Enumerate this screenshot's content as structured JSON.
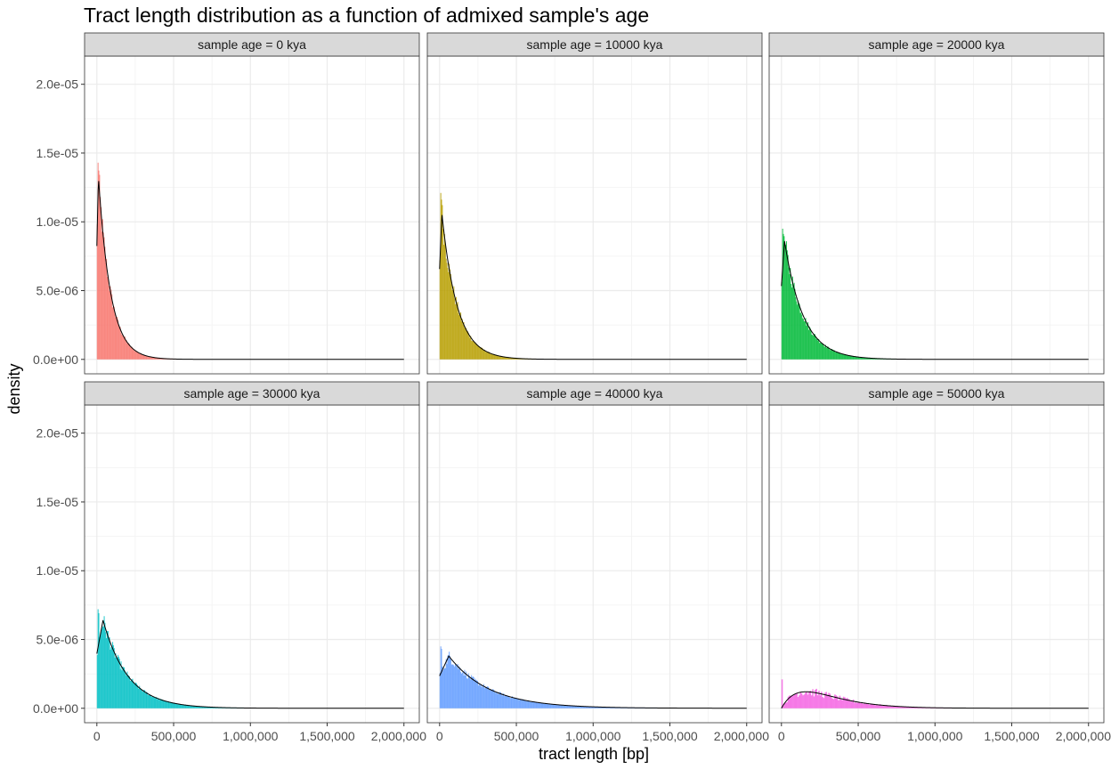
{
  "chart_data": {
    "type": "histogram",
    "title": "Tract length distribution as a function of admixed sample's age",
    "xlabel": "tract length [bp]",
    "ylabel": "density",
    "xlim": [
      0,
      2000000
    ],
    "ylim": [
      0,
      2.1e-05
    ],
    "x_ticks": [
      0,
      500000,
      1000000,
      1500000,
      2000000
    ],
    "x_tick_labels": [
      "0",
      "500,000",
      "1,000,000",
      "1,500,000",
      "2,000,000"
    ],
    "y_ticks": [
      0,
      5e-06,
      1e-05,
      1.5e-05,
      2e-05
    ],
    "y_tick_labels": [
      "0.0e+00",
      "5.0e-06",
      "1.0e-05",
      "1.5e-05",
      "2.0e-05"
    ],
    "grid": true,
    "legend": "none",
    "facets": [
      {
        "label": "sample age = 0 kya",
        "color": "#F8766D",
        "peak_x": 10000,
        "peak_density": 1.33e-05,
        "rate_per_bp": 1.33e-05,
        "max_bar": 1.43e-05
      },
      {
        "label": "sample age = 10000 kya",
        "color": "#B79F00",
        "peak_x": 15000,
        "peak_density": 1.06e-05,
        "rate_per_bp": 1.06e-05,
        "max_bar": 1.21e-05
      },
      {
        "label": "sample age = 20000 kya",
        "color": "#00BA38",
        "peak_x": 20000,
        "peak_density": 8.6e-06,
        "rate_per_bp": 8.6e-06,
        "max_bar": 9.5e-06
      },
      {
        "label": "sample age = 30000 kya",
        "color": "#00BFC4",
        "peak_x": 40000,
        "peak_density": 6.4e-06,
        "rate_per_bp": 6.5e-06,
        "max_bar": 7.2e-06
      },
      {
        "label": "sample age = 40000 kya",
        "color": "#619CFF",
        "peak_x": 60000,
        "peak_density": 3.8e-06,
        "rate_per_bp": 4e-06,
        "max_bar": 4.5e-06
      },
      {
        "label": "sample age = 50000 kya",
        "color": "#F564E3",
        "peak_x": 160000,
        "peak_density": 1.2e-06,
        "rate_per_bp": 1.3e-06,
        "max_bar": 2.1e-06
      }
    ]
  }
}
